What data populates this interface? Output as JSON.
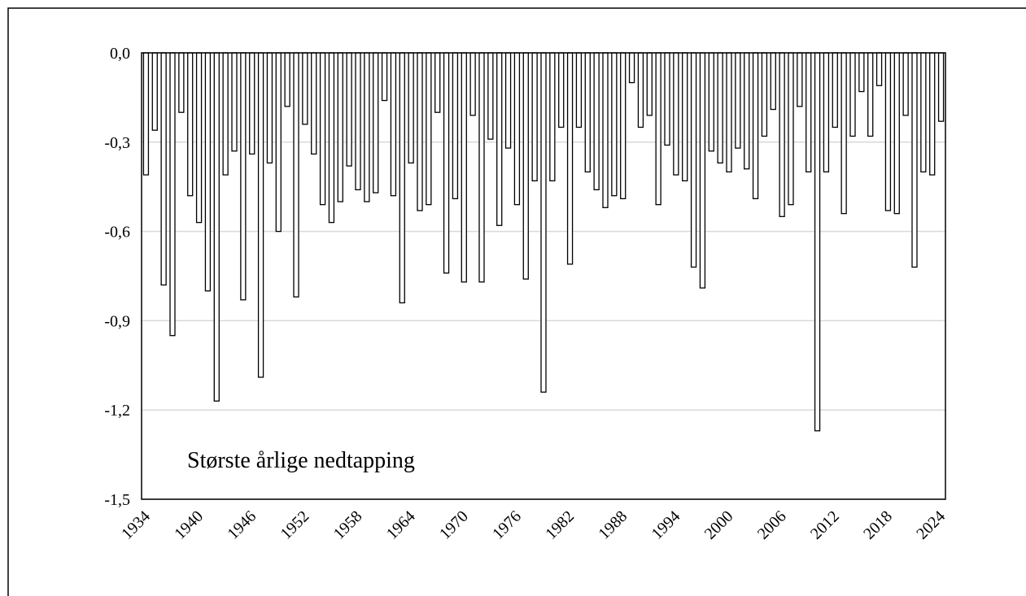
{
  "chart_data": {
    "type": "bar",
    "annotation": "Største årlige nedtapping",
    "categories": [
      1934,
      null,
      null,
      null,
      null,
      null,
      1940,
      null,
      null,
      null,
      null,
      null,
      1946,
      null,
      null,
      null,
      null,
      null,
      1952,
      null,
      null,
      null,
      null,
      null,
      1958,
      null,
      null,
      null,
      null,
      null,
      1964,
      null,
      null,
      null,
      null,
      null,
      1970,
      null,
      null,
      null,
      null,
      null,
      1976,
      null,
      null,
      null,
      null,
      null,
      1982,
      null,
      null,
      null,
      null,
      null,
      1988,
      null,
      null,
      null,
      null,
      null,
      1994,
      null,
      null,
      null,
      null,
      null,
      2000,
      null,
      null,
      null,
      null,
      null,
      2006,
      null,
      null,
      null,
      null,
      null,
      2012,
      null,
      null,
      null,
      null,
      null,
      2018,
      null,
      null,
      null,
      null,
      null,
      2024
    ],
    "values": [
      -0.41,
      -0.26,
      -0.78,
      -0.95,
      -0.2,
      -0.48,
      -0.57,
      -0.8,
      -1.17,
      -0.41,
      -0.33,
      -0.83,
      -0.34,
      -1.09,
      -0.37,
      -0.6,
      -0.18,
      -0.82,
      -0.24,
      -0.34,
      -0.51,
      -0.57,
      -0.5,
      -0.38,
      -0.46,
      -0.5,
      -0.47,
      -0.16,
      -0.48,
      -0.84,
      -0.37,
      -0.53,
      -0.51,
      -0.2,
      -0.74,
      -0.49,
      -0.77,
      -0.21,
      -0.77,
      -0.29,
      -0.58,
      -0.32,
      -0.51,
      -0.76,
      -0.43,
      -1.14,
      -0.43,
      -0.25,
      -0.71,
      -0.25,
      -0.4,
      -0.46,
      -0.52,
      -0.48,
      -0.49,
      -0.1,
      -0.25,
      -0.21,
      -0.51,
      -0.31,
      -0.41,
      -0.43,
      -0.72,
      -0.79,
      -0.33,
      -0.37,
      -0.4,
      -0.32,
      -0.39,
      -0.49,
      -0.28,
      -0.19,
      -0.55,
      -0.51,
      -0.18,
      -0.4,
      -1.27,
      -0.4,
      -0.25,
      -0.54,
      -0.28,
      -0.13,
      -0.28,
      -0.11,
      -0.53,
      -0.54,
      -0.21,
      -0.72,
      -0.4,
      -0.41,
      -0.23
    ],
    "color": "#ffffff",
    "ylim": [
      -1.5,
      0
    ],
    "yticks": [
      {
        "value": 0,
        "label": "0,0"
      },
      {
        "value": -0.3,
        "label": "-0,3"
      },
      {
        "value": -0.6,
        "label": "-0,6"
      },
      {
        "value": -0.9,
        "label": "-0,9"
      },
      {
        "value": -1.2,
        "label": "-1,2"
      },
      {
        "value": -1.5,
        "label": "-1,5"
      }
    ],
    "grid": true
  }
}
